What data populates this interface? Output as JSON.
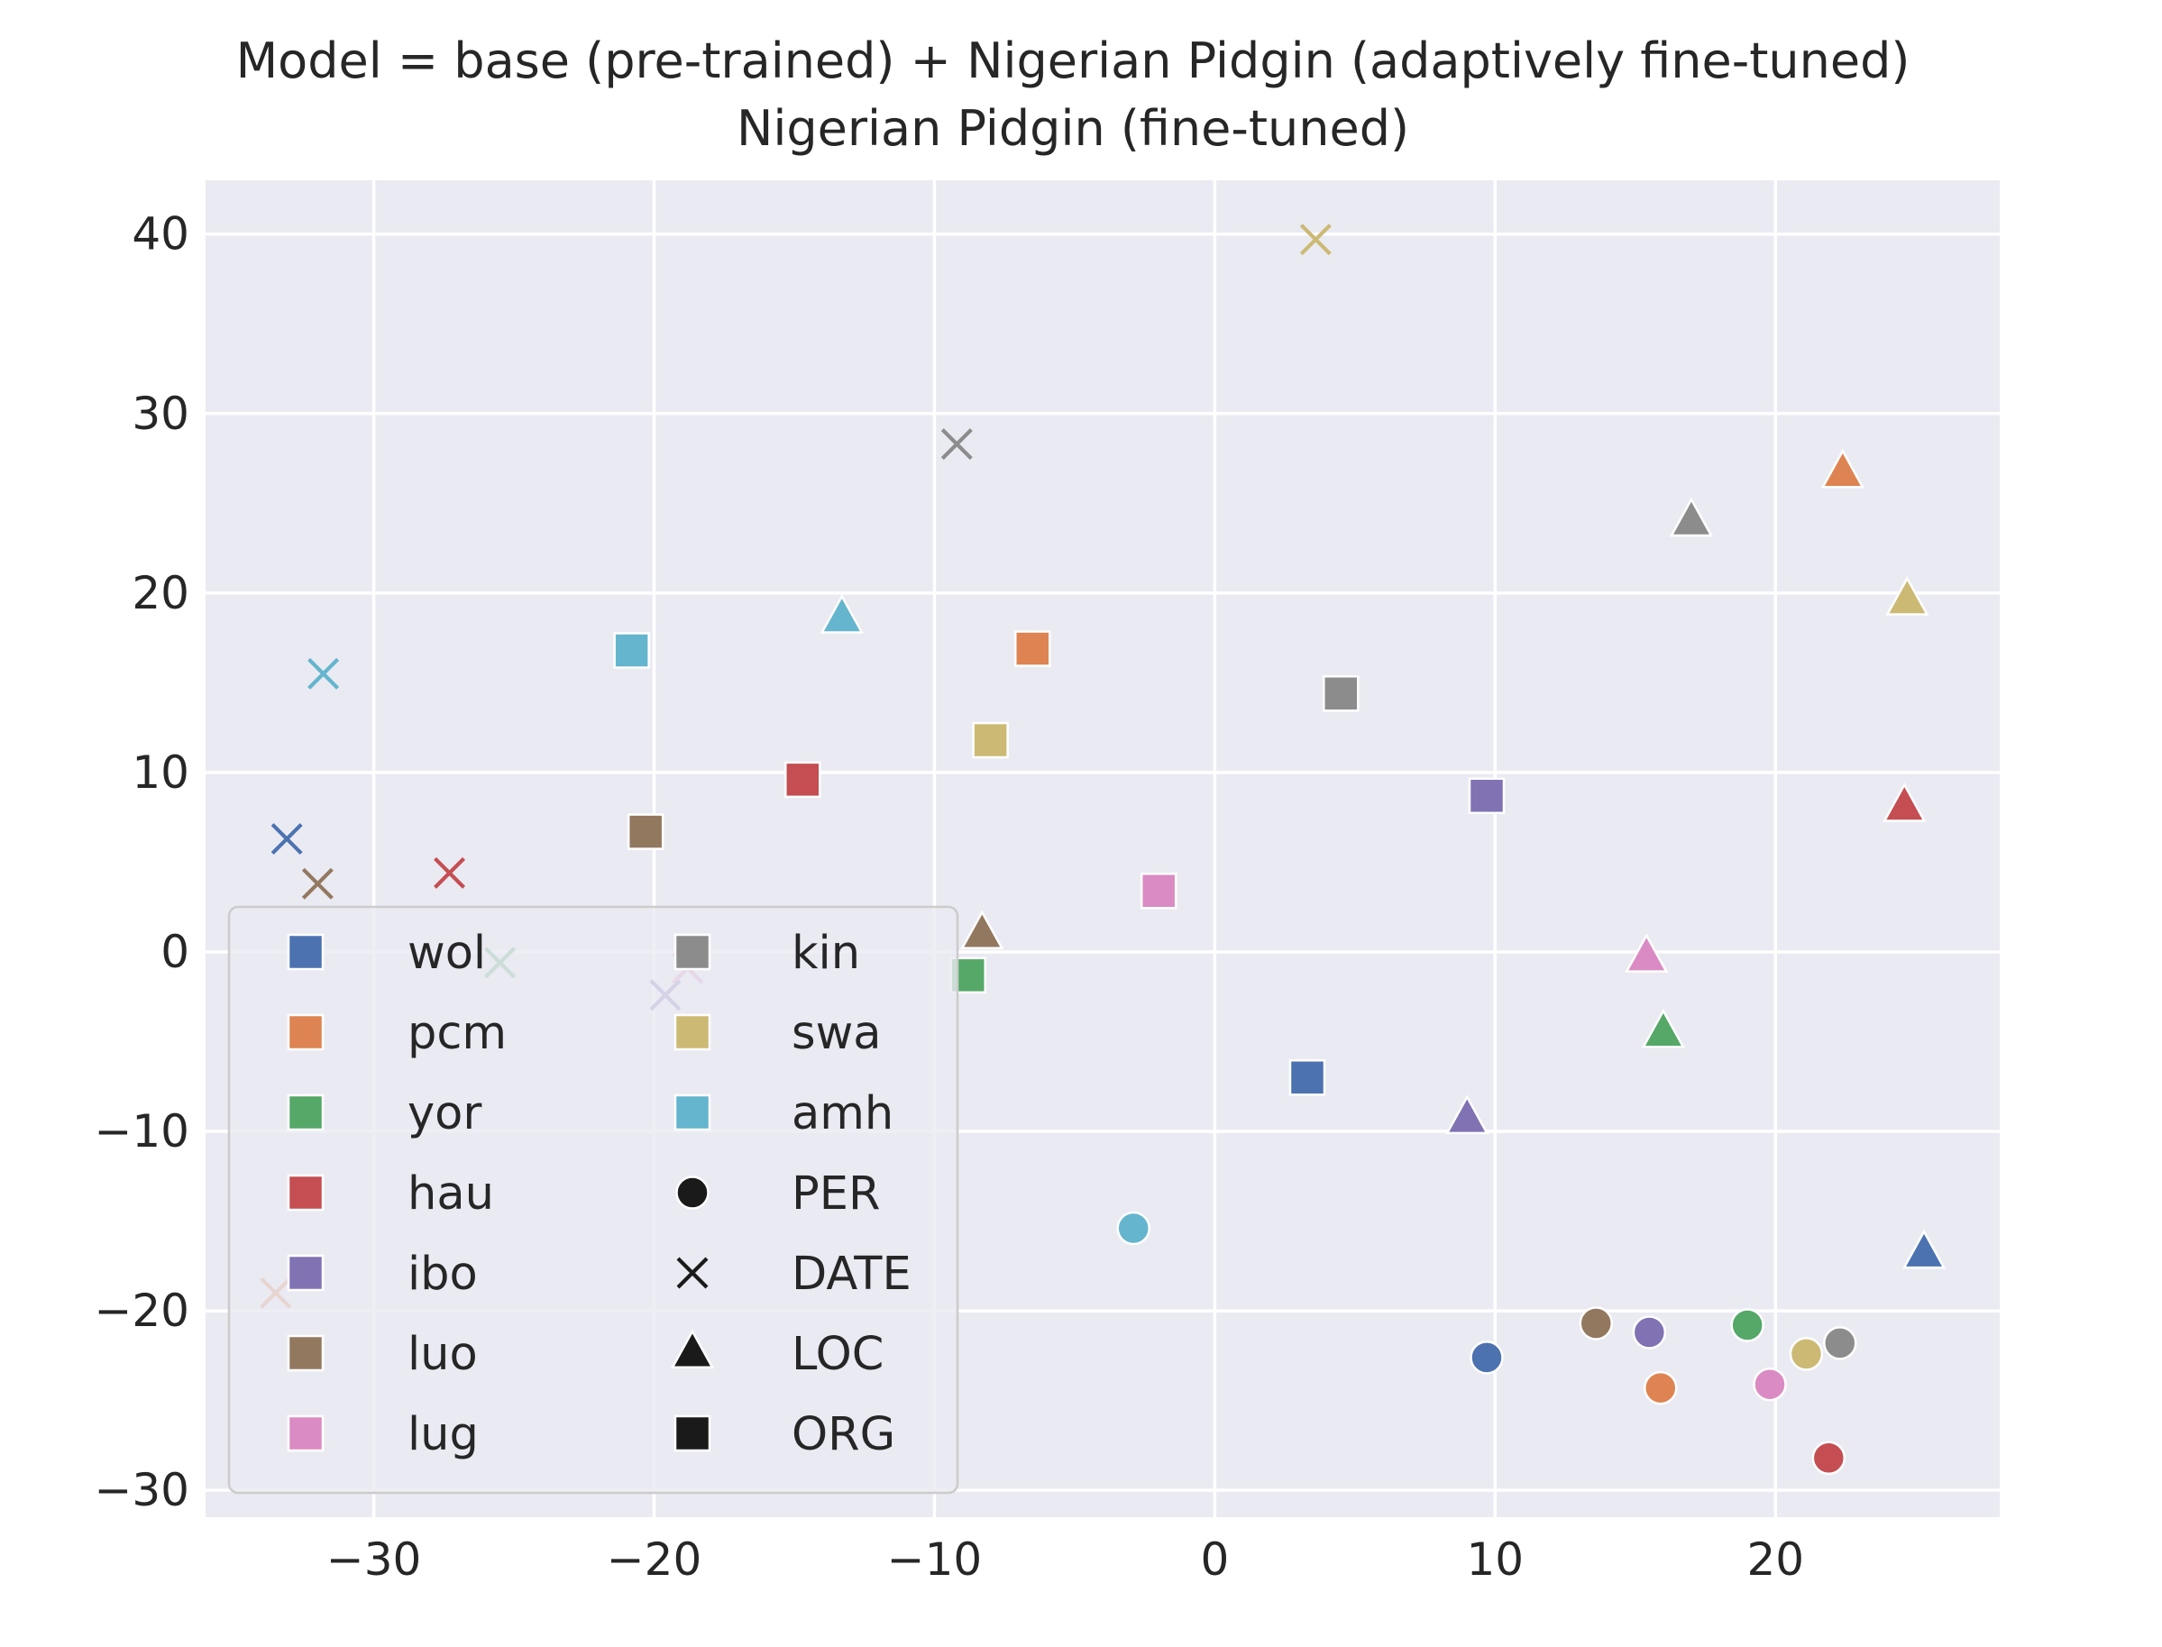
{
  "chart_data": {
    "type": "scatter",
    "title": "Model = base (pre-trained) + Nigerian Pidgin (adaptively fine-tuned)",
    "subtitle": "Nigerian Pidgin (fine-tuned)",
    "xlabel": "",
    "ylabel": "",
    "xlim": [
      -36,
      28
    ],
    "ylim": [
      -31.5,
      43
    ],
    "xticks": [
      -30,
      -20,
      -10,
      0,
      10,
      20
    ],
    "yticks": [
      -30,
      -20,
      -10,
      0,
      10,
      20,
      30,
      40
    ],
    "xtick_labels": [
      "−30",
      "−20",
      "−10",
      "0",
      "10",
      "20"
    ],
    "ytick_labels": [
      "−30",
      "−20",
      "−10",
      "0",
      "10",
      "20",
      "30",
      "40"
    ],
    "grid": true,
    "legend_position": "lower-left",
    "colors": {
      "wol": "#4c72b0",
      "pcm": "#dd8452",
      "yor": "#55a868",
      "hau": "#c44e52",
      "ibo": "#8172b3",
      "luo": "#937860",
      "lug": "#da8bc3",
      "kin": "#8c8c8c",
      "swa": "#ccb974",
      "amh": "#64b5cd"
    },
    "legend": {
      "languages": [
        "wol",
        "pcm",
        "yor",
        "hau",
        "ibo",
        "luo",
        "lug",
        "kin",
        "swa",
        "amh"
      ],
      "markers": [
        {
          "label": "PER",
          "marker": "circle"
        },
        {
          "label": "DATE",
          "marker": "x"
        },
        {
          "label": "LOC",
          "marker": "triangle"
        },
        {
          "label": "ORG",
          "marker": "square"
        }
      ]
    },
    "series": [
      {
        "name": "wol",
        "points": [
          {
            "entity": "PER",
            "x": 9.7,
            "y": -22.6
          },
          {
            "entity": "DATE",
            "x": -33.1,
            "y": 6.3
          },
          {
            "entity": "LOC",
            "x": 25.3,
            "y": -16.8
          },
          {
            "entity": "ORG",
            "x": 3.3,
            "y": -7.0
          }
        ]
      },
      {
        "name": "pcm",
        "points": [
          {
            "entity": "PER",
            "x": 15.9,
            "y": -24.3
          },
          {
            "entity": "DATE",
            "x": -33.5,
            "y": -19.0
          },
          {
            "entity": "LOC",
            "x": 22.4,
            "y": 26.7
          },
          {
            "entity": "ORG",
            "x": -6.5,
            "y": 16.9
          }
        ]
      },
      {
        "name": "yor",
        "points": [
          {
            "entity": "PER",
            "x": 19.0,
            "y": -20.8
          },
          {
            "entity": "DATE",
            "x": -25.5,
            "y": -0.6
          },
          {
            "entity": "LOC",
            "x": 16.0,
            "y": -4.5
          },
          {
            "entity": "ORG",
            "x": -8.8,
            "y": -1.3
          }
        ]
      },
      {
        "name": "hau",
        "points": [
          {
            "entity": "PER",
            "x": 21.9,
            "y": -28.2
          },
          {
            "entity": "DATE",
            "x": -27.3,
            "y": 4.4
          },
          {
            "entity": "LOC",
            "x": 24.6,
            "y": 8.1
          },
          {
            "entity": "ORG",
            "x": -14.7,
            "y": 9.6
          }
        ]
      },
      {
        "name": "ibo",
        "points": [
          {
            "entity": "PER",
            "x": 15.5,
            "y": -21.2
          },
          {
            "entity": "DATE",
            "x": -19.6,
            "y": -2.4
          },
          {
            "entity": "LOC",
            "x": 9.0,
            "y": -9.3
          },
          {
            "entity": "ORG",
            "x": 9.7,
            "y": 8.7
          }
        ]
      },
      {
        "name": "luo",
        "points": [
          {
            "entity": "PER",
            "x": 13.6,
            "y": -20.7
          },
          {
            "entity": "DATE",
            "x": -32.0,
            "y": 3.8
          },
          {
            "entity": "LOC",
            "x": -8.3,
            "y": 1.0
          },
          {
            "entity": "ORG",
            "x": -20.3,
            "y": 6.7
          }
        ]
      },
      {
        "name": "lug",
        "points": [
          {
            "entity": "PER",
            "x": 19.8,
            "y": -24.1
          },
          {
            "entity": "DATE",
            "x": -18.8,
            "y": -0.9
          },
          {
            "entity": "LOC",
            "x": 15.4,
            "y": -0.3
          },
          {
            "entity": "ORG",
            "x": -2.0,
            "y": 3.4
          }
        ]
      },
      {
        "name": "kin",
        "points": [
          {
            "entity": "PER",
            "x": 22.3,
            "y": -21.8
          },
          {
            "entity": "DATE",
            "x": -9.2,
            "y": 28.3
          },
          {
            "entity": "LOC",
            "x": 17.0,
            "y": 24.0
          },
          {
            "entity": "ORG",
            "x": 4.5,
            "y": 14.4
          }
        ]
      },
      {
        "name": "swa",
        "points": [
          {
            "entity": "PER",
            "x": 21.1,
            "y": -22.4
          },
          {
            "entity": "DATE",
            "x": 3.6,
            "y": 39.7
          },
          {
            "entity": "LOC",
            "x": 24.7,
            "y": 19.6
          },
          {
            "entity": "ORG",
            "x": -8.0,
            "y": 11.8
          }
        ]
      },
      {
        "name": "amh",
        "points": [
          {
            "entity": "PER",
            "x": -2.9,
            "y": -15.4
          },
          {
            "entity": "DATE",
            "x": -31.8,
            "y": 15.5
          },
          {
            "entity": "LOC",
            "x": -13.3,
            "y": 18.6
          },
          {
            "entity": "ORG",
            "x": -20.8,
            "y": 16.8
          }
        ]
      }
    ]
  }
}
